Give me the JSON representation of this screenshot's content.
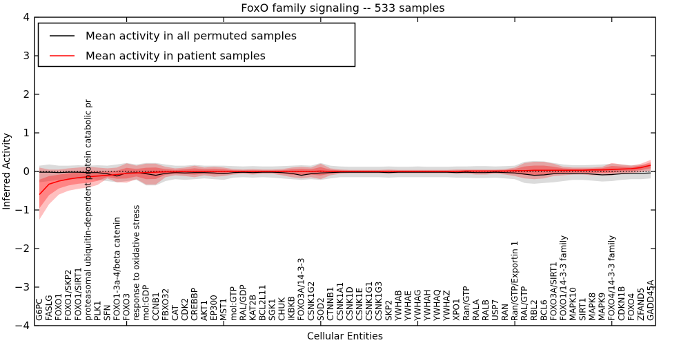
{
  "title": "FoxO family signaling -- 533 samples",
  "chart_data": {
    "type": "line",
    "title": "FoxO family signaling -- 533 samples",
    "xlabel": "Cellular Entities",
    "ylabel": "Inferred Activity",
    "ylim": [
      -4,
      4
    ],
    "yticks": [
      -4,
      -3,
      -2,
      -1,
      0,
      1,
      2,
      3,
      4
    ],
    "xtick_major_indices": [
      9,
      19,
      29,
      39,
      49,
      59
    ],
    "grid": false,
    "legend_position": "upper left",
    "zero_line": {
      "y": 0,
      "style": "dotted",
      "color": "#000000"
    },
    "colors": {
      "permuted_line": "#000000",
      "patient_line": "#ff0000",
      "permuted_band": "#b0b0b0",
      "patient_band": "#ff0000"
    },
    "categories": [
      "G6PC",
      "FASLG",
      "FOXO1",
      "FOXO1/SKP2",
      "FOXO1/SIRT1",
      "proteasomal ubiquitin-dependent protein catabolic pr",
      "PLK1",
      "SFN",
      "FOXO1-3a-4/beta catenin",
      "FOXO3",
      "response to oxidative stress",
      "mol:GDP",
      "CCNB1",
      "FBXO32",
      "CAT",
      "CDK2",
      "CREBBP",
      "AKT1",
      "EP300",
      "MST1",
      "mol:GTP",
      "RAL/GDP",
      "KAT2B",
      "BCL2L11",
      "SGK1",
      "CHUK",
      "IKBKB",
      "FOXO3A/14-3-3",
      "CSNK1G2",
      "SOD2",
      "CTNNB1",
      "CSNK1A1",
      "CSNK1D",
      "CSNK1E",
      "CSNK1G1",
      "CSNK1G3",
      "SKP2",
      "YWHAB",
      "YWHAE",
      "YWHAG",
      "YWHAH",
      "YWHAQ",
      "YWHAZ",
      "XPO1",
      "Ran/GTP",
      "RALA",
      "RALB",
      "USP7",
      "RAN",
      "Ran/GTP/Exportin 1",
      "RAL/GTP",
      "RBL2",
      "BCL6",
      "FOXO3A/SIRT1",
      "FOXO1/14-3-3 family",
      "MAPK10",
      "SIRT1",
      "MAPK8",
      "MAPK9",
      "FOXO4/14-3-3 family",
      "CDKN1B",
      "FOXO4",
      "ZFAND5",
      "GADD45A"
    ],
    "series": [
      {
        "name": "Mean activity in all permuted samples",
        "color": "#000000",
        "values": [
          -0.02,
          -0.02,
          -0.03,
          -0.02,
          -0.02,
          -0.03,
          -0.03,
          -0.06,
          -0.12,
          -0.04,
          -0.03,
          -0.06,
          -0.1,
          -0.05,
          -0.03,
          -0.04,
          -0.03,
          -0.03,
          -0.04,
          -0.06,
          -0.03,
          -0.02,
          -0.03,
          -0.02,
          -0.02,
          -0.03,
          -0.05,
          -0.1,
          -0.06,
          -0.04,
          -0.03,
          -0.02,
          -0.02,
          -0.02,
          -0.02,
          -0.02,
          -0.03,
          -0.02,
          -0.02,
          -0.02,
          -0.02,
          -0.02,
          -0.02,
          -0.03,
          -0.02,
          -0.03,
          -0.03,
          -0.02,
          -0.03,
          -0.04,
          -0.07,
          -0.1,
          -0.09,
          -0.06,
          -0.05,
          -0.06,
          -0.05,
          -0.07,
          -0.09,
          -0.08,
          -0.06,
          -0.05,
          -0.05,
          -0.04
        ]
      },
      {
        "name": "Mean activity in patient samples",
        "color": "#ff0000",
        "values": [
          -0.6,
          -0.33,
          -0.25,
          -0.2,
          -0.16,
          -0.14,
          -0.12,
          -0.1,
          -0.08,
          -0.05,
          -0.04,
          -0.03,
          -0.02,
          -0.01,
          -0.01,
          0.0,
          0.0,
          0.0,
          0.0,
          0.0,
          0.0,
          0.0,
          0.0,
          0.0,
          0.0,
          0.0,
          0.0,
          0.0,
          0.0,
          0.01,
          0.0,
          0.0,
          0.0,
          0.0,
          0.0,
          0.0,
          0.0,
          0.0,
          0.0,
          0.0,
          0.0,
          0.0,
          0.0,
          0.0,
          0.01,
          0.01,
          0.01,
          0.01,
          0.01,
          0.02,
          0.02,
          0.03,
          0.03,
          0.03,
          0.03,
          0.03,
          0.03,
          0.04,
          0.04,
          0.05,
          0.06,
          0.07,
          0.1,
          0.16
        ]
      }
    ],
    "bands": [
      {
        "name": "permuted-range",
        "color": "#b0b0b0",
        "opacity": 0.45,
        "upper": [
          0.15,
          0.18,
          0.15,
          0.15,
          0.16,
          0.15,
          0.16,
          0.15,
          0.18,
          0.22,
          0.18,
          0.22,
          0.22,
          0.18,
          0.15,
          0.15,
          0.17,
          0.15,
          0.15,
          0.15,
          0.14,
          0.13,
          0.14,
          0.13,
          0.13,
          0.14,
          0.15,
          0.16,
          0.15,
          0.22,
          0.15,
          0.13,
          0.12,
          0.12,
          0.12,
          0.12,
          0.13,
          0.12,
          0.12,
          0.13,
          0.12,
          0.12,
          0.12,
          0.13,
          0.13,
          0.14,
          0.14,
          0.13,
          0.14,
          0.15,
          0.25,
          0.27,
          0.26,
          0.22,
          0.18,
          0.16,
          0.16,
          0.17,
          0.18,
          0.2,
          0.18,
          0.16,
          0.17,
          0.18
        ],
        "lower": [
          -0.28,
          -0.25,
          -0.22,
          -0.2,
          -0.2,
          -0.18,
          -0.22,
          -0.25,
          -0.28,
          -0.25,
          -0.22,
          -0.36,
          -0.36,
          -0.25,
          -0.2,
          -0.22,
          -0.2,
          -0.18,
          -0.2,
          -0.22,
          -0.16,
          -0.15,
          -0.16,
          -0.15,
          -0.16,
          -0.18,
          -0.2,
          -0.22,
          -0.2,
          -0.22,
          -0.18,
          -0.15,
          -0.15,
          -0.15,
          -0.15,
          -0.15,
          -0.16,
          -0.15,
          -0.15,
          -0.15,
          -0.15,
          -0.15,
          -0.15,
          -0.16,
          -0.16,
          -0.17,
          -0.17,
          -0.16,
          -0.18,
          -0.2,
          -0.3,
          -0.32,
          -0.3,
          -0.28,
          -0.25,
          -0.22,
          -0.22,
          -0.24,
          -0.26,
          -0.25,
          -0.22,
          -0.2,
          -0.2,
          -0.18
        ]
      },
      {
        "name": "patient-range",
        "color": "#ff0000",
        "opacity": 0.25,
        "upper": [
          0.1,
          0.05,
          0.05,
          0.08,
          0.1,
          0.12,
          0.1,
          0.08,
          0.1,
          0.21,
          0.15,
          0.2,
          0.2,
          0.12,
          0.08,
          0.1,
          0.15,
          0.1,
          0.12,
          0.1,
          0.06,
          0.05,
          0.06,
          0.05,
          0.05,
          0.06,
          0.1,
          0.12,
          0.1,
          0.2,
          0.08,
          0.05,
          0.04,
          0.04,
          0.04,
          0.04,
          0.05,
          0.04,
          0.04,
          0.04,
          0.04,
          0.04,
          0.04,
          0.05,
          0.05,
          0.05,
          0.05,
          0.05,
          0.06,
          0.1,
          0.22,
          0.25,
          0.25,
          0.2,
          0.12,
          0.1,
          0.1,
          0.1,
          0.12,
          0.22,
          0.18,
          0.15,
          0.2,
          0.3
        ],
        "lower": [
          -1.25,
          -0.85,
          -0.6,
          -0.5,
          -0.45,
          -0.42,
          -0.35,
          -0.18,
          -0.28,
          -0.29,
          -0.2,
          -0.34,
          -0.34,
          -0.15,
          -0.1,
          -0.12,
          -0.15,
          -0.1,
          -0.14,
          -0.12,
          -0.08,
          -0.06,
          -0.08,
          -0.06,
          -0.06,
          -0.1,
          -0.15,
          -0.18,
          -0.15,
          -0.2,
          -0.1,
          -0.06,
          -0.05,
          -0.05,
          -0.05,
          -0.05,
          -0.06,
          -0.05,
          -0.05,
          -0.05,
          -0.05,
          -0.05,
          -0.05,
          -0.06,
          -0.06,
          -0.08,
          -0.08,
          -0.06,
          -0.08,
          -0.12,
          -0.18,
          -0.2,
          -0.18,
          -0.12,
          -0.1,
          -0.08,
          -0.08,
          -0.1,
          -0.1,
          -0.1,
          -0.06,
          -0.04,
          -0.02,
          0.02
        ]
      }
    ]
  }
}
